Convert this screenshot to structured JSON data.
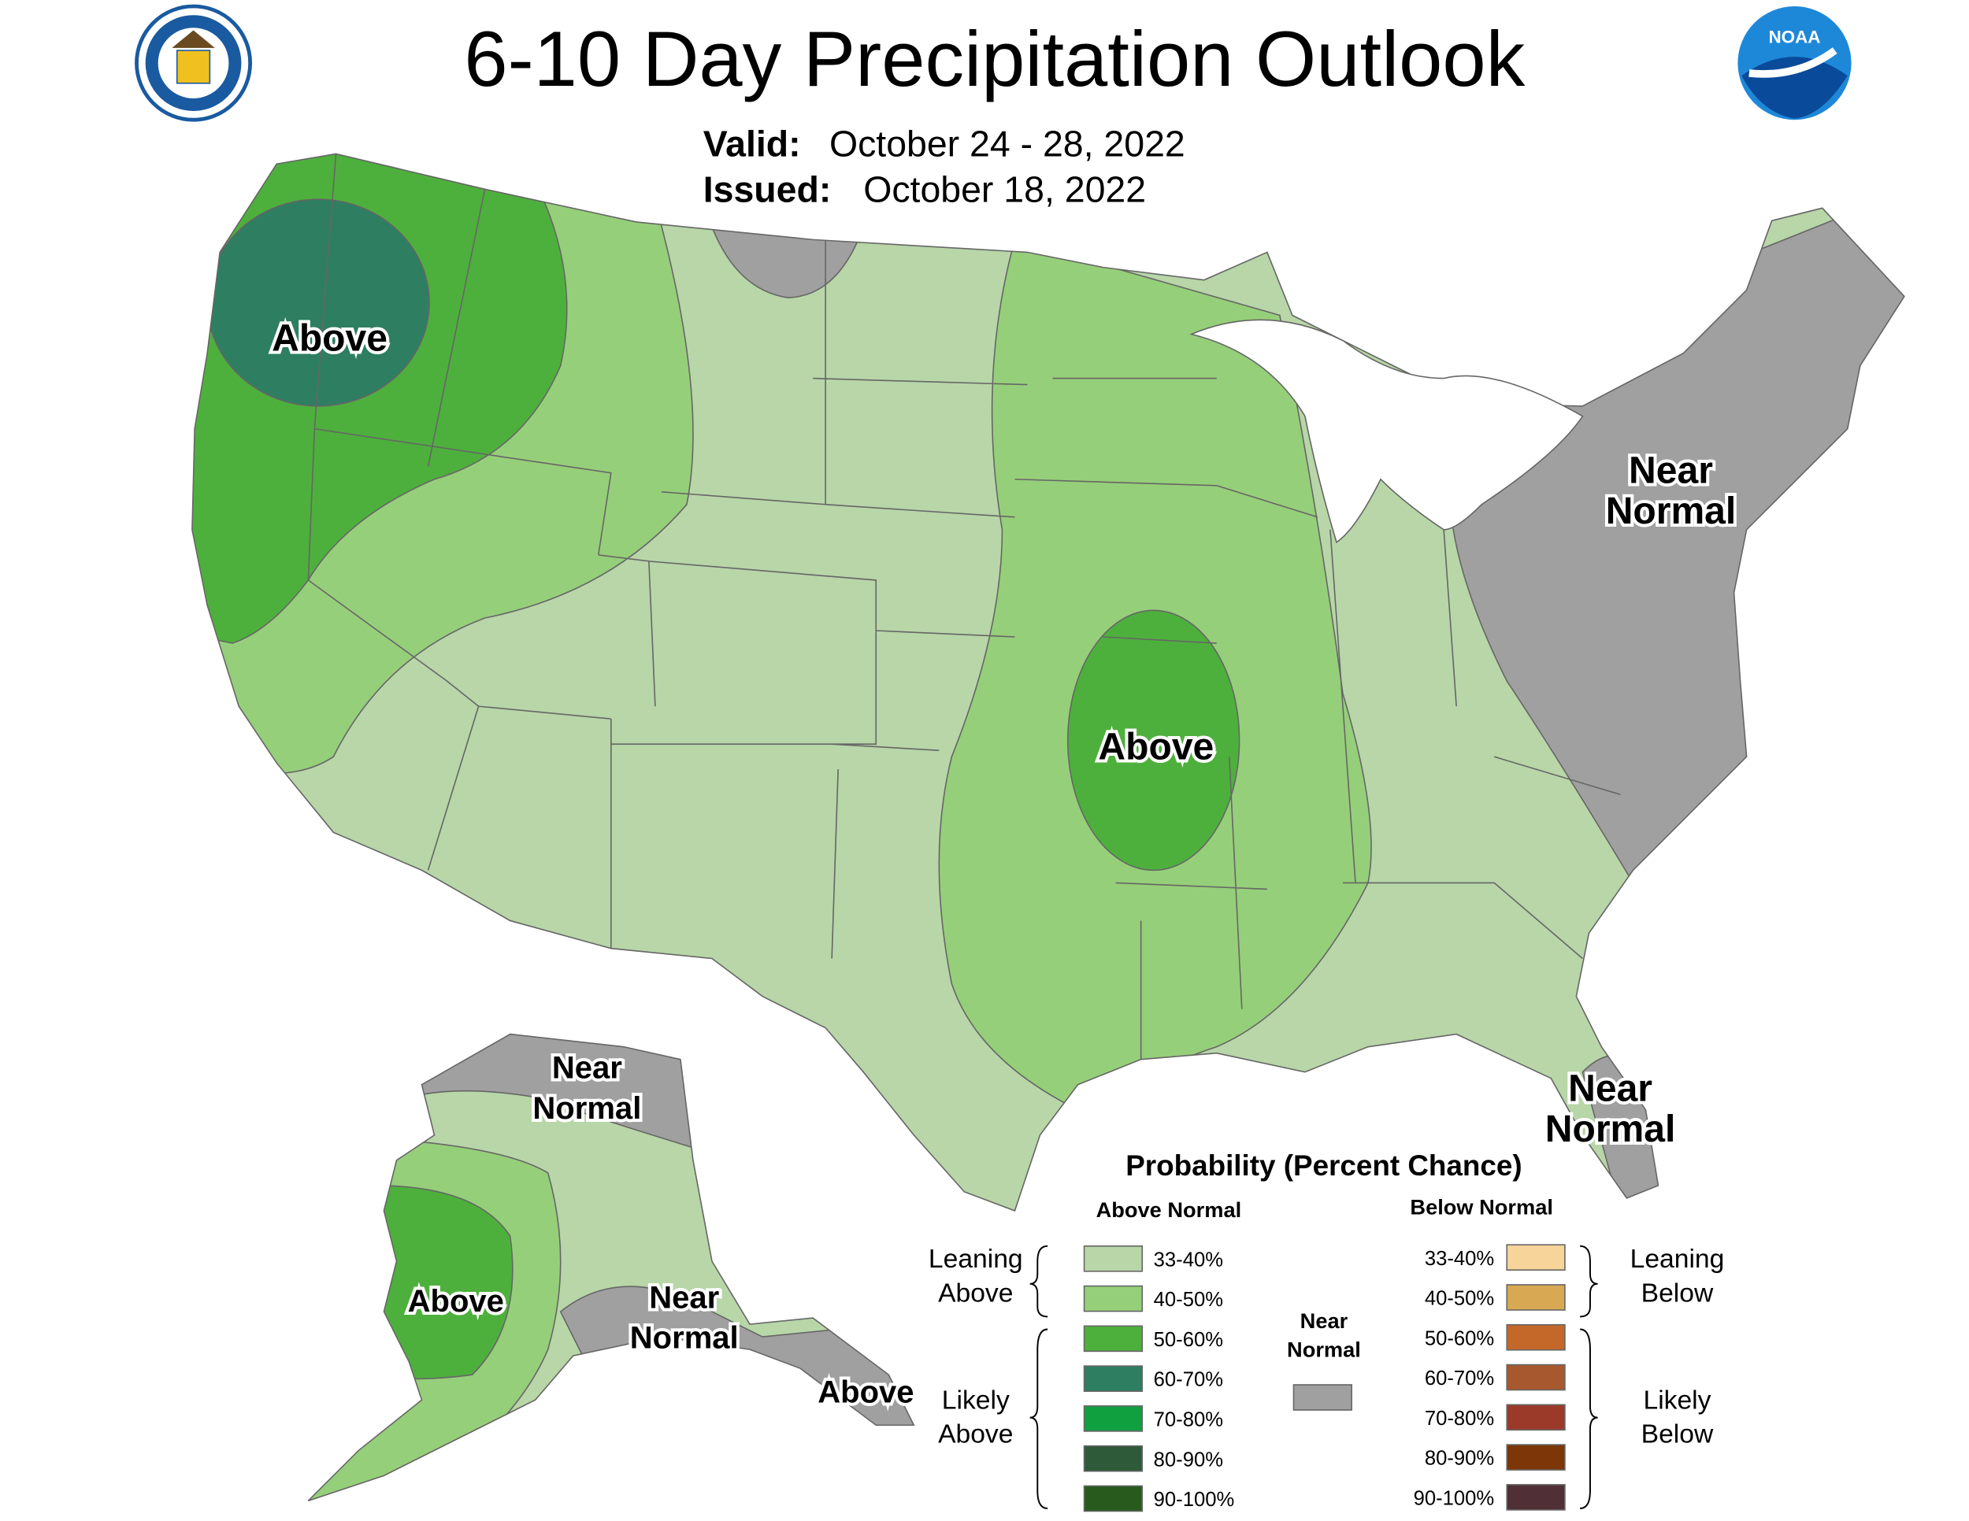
{
  "header": {
    "title": "6-10 Day Precipitation Outlook",
    "valid_label": "Valid:",
    "valid_date": "October 24 - 28, 2022",
    "issued_label": "Issued:",
    "issued_date": "October 18, 2022",
    "noaa_logo": "NOAA"
  },
  "regions": [
    {
      "lines": [
        "Above"
      ]
    },
    {
      "lines": [
        "Near",
        "Normal"
      ]
    },
    {
      "lines": [
        "Above"
      ]
    },
    {
      "lines": [
        "Near",
        "Normal"
      ]
    },
    {
      "lines": [
        "Near",
        "Normal"
      ]
    },
    {
      "lines": [
        "Above"
      ]
    },
    {
      "lines": [
        "Near",
        "Normal"
      ]
    },
    {
      "lines": [
        "Above"
      ]
    }
  ],
  "legend": {
    "title": "Probability (Percent Chance)",
    "above_heading": "Above Normal",
    "below_heading": "Below Normal",
    "near_heading": [
      "Near",
      "Normal"
    ],
    "near_color": "#a0a0a0",
    "leaning_above": [
      "Leaning",
      "Above"
    ],
    "likely_above": [
      "Likely",
      "Above"
    ],
    "leaning_below": [
      "Leaning",
      "Below"
    ],
    "likely_below": [
      "Likely",
      "Below"
    ],
    "above": [
      {
        "label": "33-40%",
        "color": "#b8d6a8"
      },
      {
        "label": "40-50%",
        "color": "#96cf7a"
      },
      {
        "label": "50-60%",
        "color": "#4eb03c"
      },
      {
        "label": "60-70%",
        "color": "#2e7e62"
      },
      {
        "label": "70-80%",
        "color": "#10a040"
      },
      {
        "label": "80-90%",
        "color": "#2e5a3a"
      },
      {
        "label": "90-100%",
        "color": "#285a1e"
      }
    ],
    "below": [
      {
        "label": "33-40%",
        "color": "#f6d49a"
      },
      {
        "label": "40-50%",
        "color": "#d8a852"
      },
      {
        "label": "50-60%",
        "color": "#c4682a"
      },
      {
        "label": "60-70%",
        "color": "#a8582e"
      },
      {
        "label": "70-80%",
        "color": "#9c3a2a"
      },
      {
        "label": "80-90%",
        "color": "#7c3608"
      },
      {
        "label": "90-100%",
        "color": "#503036"
      }
    ]
  }
}
